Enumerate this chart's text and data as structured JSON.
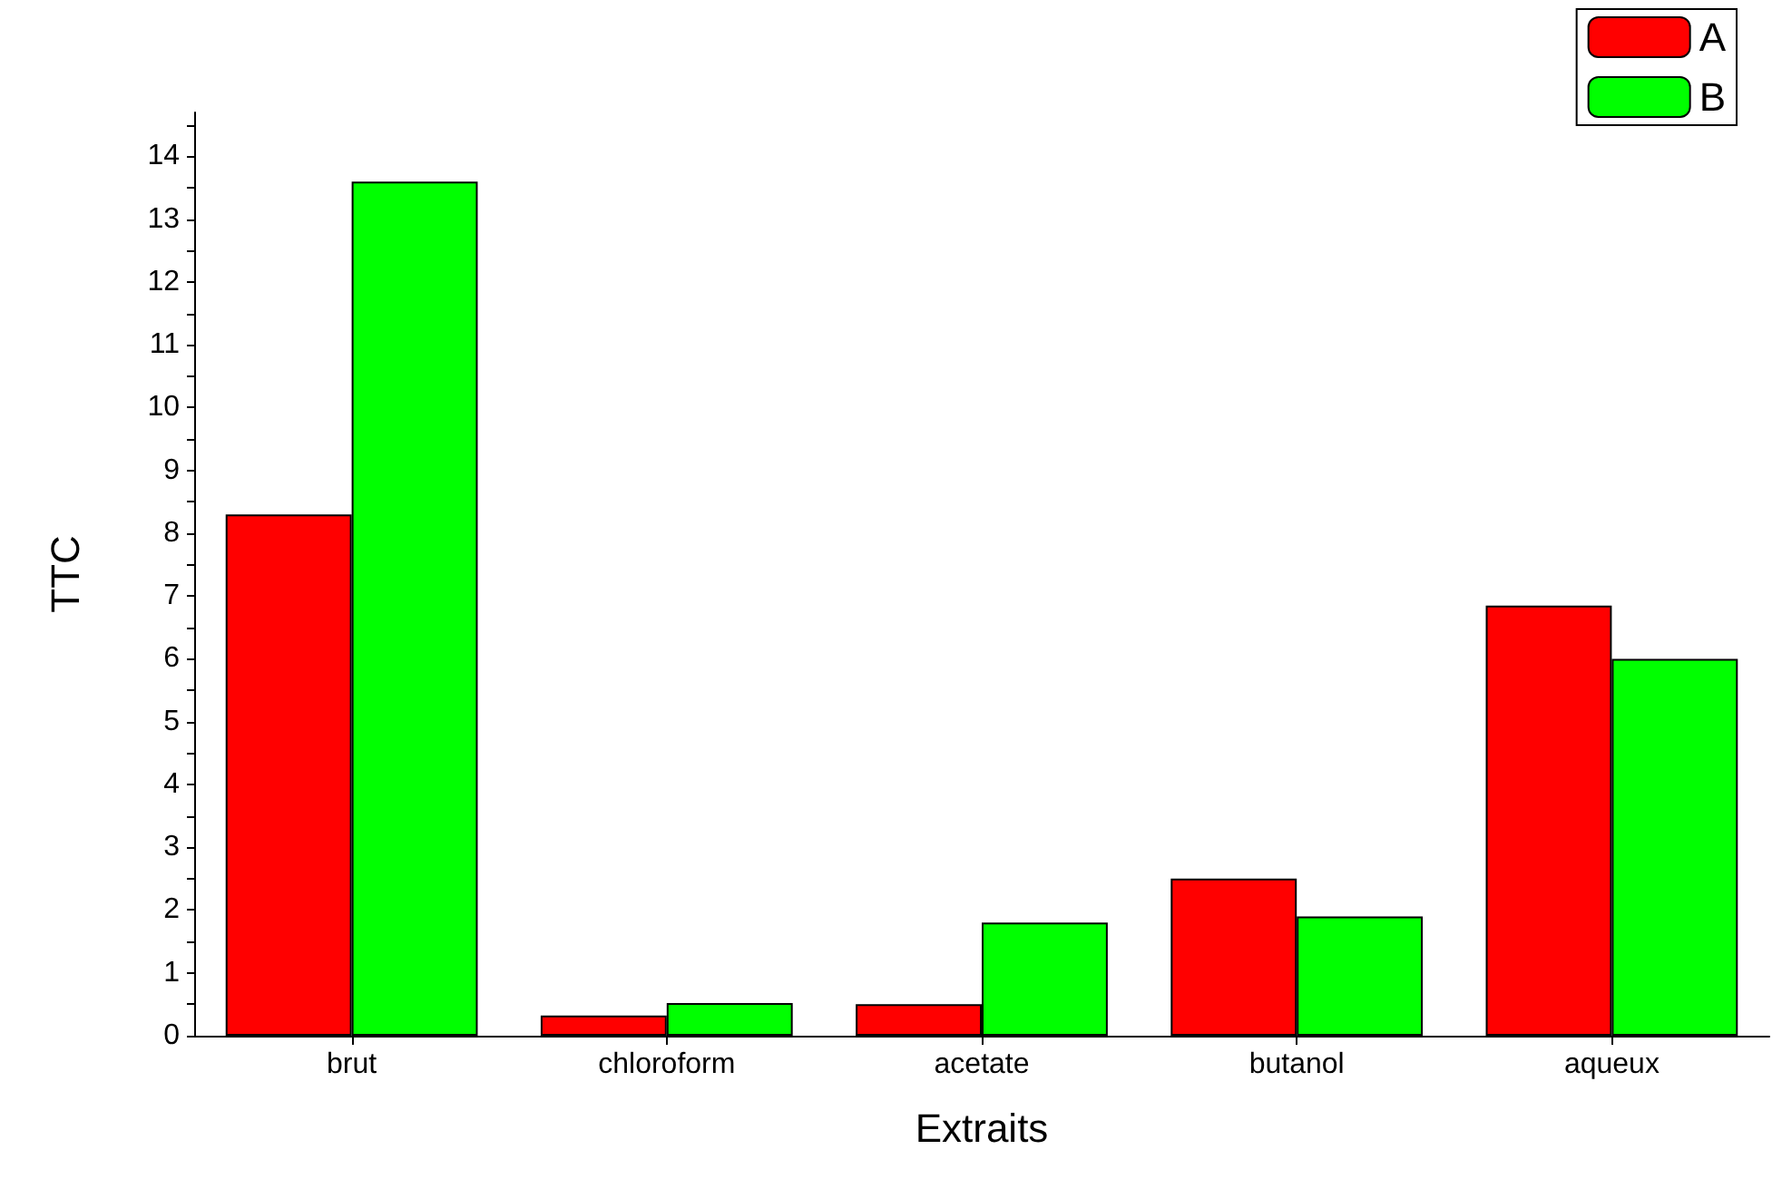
{
  "chart_data": {
    "type": "bar",
    "xlabel": "Extraits",
    "ylabel": "TTC",
    "categories": [
      "brut",
      "chloroform",
      "acetate",
      "butanol",
      "aqueux"
    ],
    "series": [
      {
        "name": "A",
        "color": "#ff0000",
        "values": [
          8.3,
          0.32,
          0.5,
          2.5,
          6.85
        ]
      },
      {
        "name": "B",
        "color": "#00ff00",
        "values": [
          13.6,
          0.52,
          1.8,
          1.9,
          6.0
        ]
      }
    ],
    "ylim": [
      0,
      14.7
    ],
    "yticks": [
      0,
      {
        "value": 0.5,
        "label": null
      },
      1,
      {
        "value": 1.5,
        "label": null
      },
      2,
      {
        "value": 2.5,
        "label": null
      },
      3,
      {
        "value": 3.5,
        "label": null
      },
      4,
      {
        "value": 4.5,
        "label": null
      },
      5,
      {
        "value": 5.5,
        "label": null
      },
      6,
      {
        "value": 6.5,
        "label": null
      },
      7,
      {
        "value": 7.5,
        "label": null
      },
      8,
      {
        "value": 8.5,
        "label": null
      },
      9,
      {
        "value": 9.5,
        "label": null
      },
      10,
      {
        "value": 10.5,
        "label": null
      },
      11,
      {
        "value": 11.5,
        "label": null
      },
      12,
      {
        "value": 12.5,
        "label": null
      },
      13,
      {
        "value": 13.5,
        "label": null
      },
      14,
      {
        "value": 14.5,
        "label": null
      }
    ],
    "grid": false,
    "legend": "top right"
  }
}
